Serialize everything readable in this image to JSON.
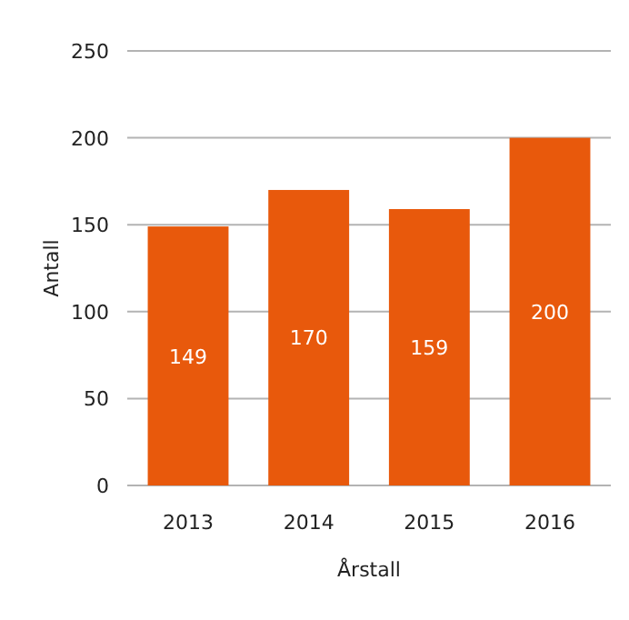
{
  "chart_data": {
    "type": "bar",
    "xlabel": "Årstall",
    "ylabel": "Antall",
    "categories": [
      "2013",
      "2014",
      "2015",
      "2016"
    ],
    "values": [
      149,
      170,
      159,
      200
    ],
    "color": "#e8590c",
    "ylim": [
      0,
      250
    ],
    "yticks": [
      0,
      50,
      100,
      150,
      200,
      250
    ],
    "grid": "y",
    "data_labels": true
  }
}
